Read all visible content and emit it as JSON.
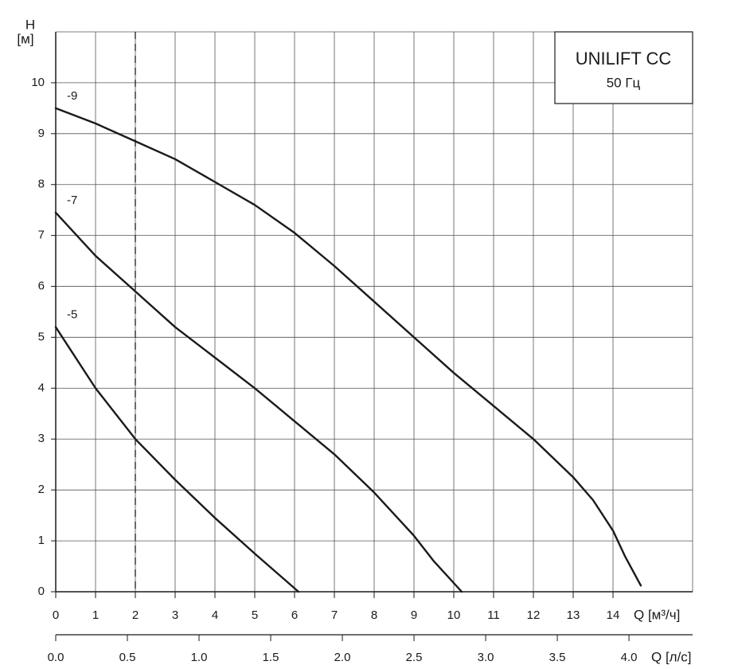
{
  "chart_data": {
    "type": "line",
    "box_title": "UNILIFT CC",
    "box_subtitle": "50 Гц",
    "y_label": "H",
    "y_unit": "[м]",
    "x_label": "Q [м³/ч]",
    "x2_label": "Q [л/с]",
    "xlim": [
      0,
      16
    ],
    "xticks": [
      0,
      1,
      2,
      3,
      4,
      5,
      6,
      7,
      8,
      9,
      10,
      11,
      12,
      13,
      14
    ],
    "ylim": [
      0,
      11
    ],
    "yticks": [
      0,
      1,
      2,
      3,
      4,
      5,
      6,
      7,
      8,
      9,
      10
    ],
    "x2lim": [
      0,
      4.444
    ],
    "x2ticks": [
      {
        "value": 0,
        "label": "0.0"
      },
      0.5,
      {
        "value": 1,
        "label": "1.0"
      },
      1.5,
      {
        "value": 2,
        "label": "2.0"
      },
      2.5,
      {
        "value": 3,
        "label": "3.0"
      },
      3.5,
      {
        "value": 4,
        "label": "4.0"
      }
    ],
    "grid": true,
    "reference_x": 2,
    "color": "#1a1a1a",
    "series": [
      {
        "name": "-9",
        "x": [
          0,
          1,
          2,
          3,
          4,
          5,
          6,
          7,
          8,
          9,
          10,
          11,
          12,
          13,
          13.5,
          14,
          14.3,
          14.7
        ],
        "values": [
          9.5,
          9.2,
          8.85,
          8.5,
          8.05,
          7.6,
          7.05,
          6.4,
          5.7,
          5.0,
          4.3,
          3.65,
          3.0,
          2.25,
          1.8,
          1.2,
          0.7,
          0.12
        ]
      },
      {
        "name": "-7",
        "x": [
          0,
          1,
          2,
          3,
          4,
          5,
          6,
          7,
          8,
          9,
          9.5,
          10.2
        ],
        "values": [
          7.45,
          6.6,
          5.9,
          5.2,
          4.6,
          4.0,
          3.35,
          2.7,
          1.95,
          1.1,
          0.6,
          0
        ]
      },
      {
        "name": "-5",
        "x": [
          0,
          1,
          2,
          3,
          4,
          5,
          6.1
        ],
        "values": [
          5.2,
          4.0,
          3.0,
          2.2,
          1.45,
          0.75,
          0
        ]
      }
    ]
  }
}
